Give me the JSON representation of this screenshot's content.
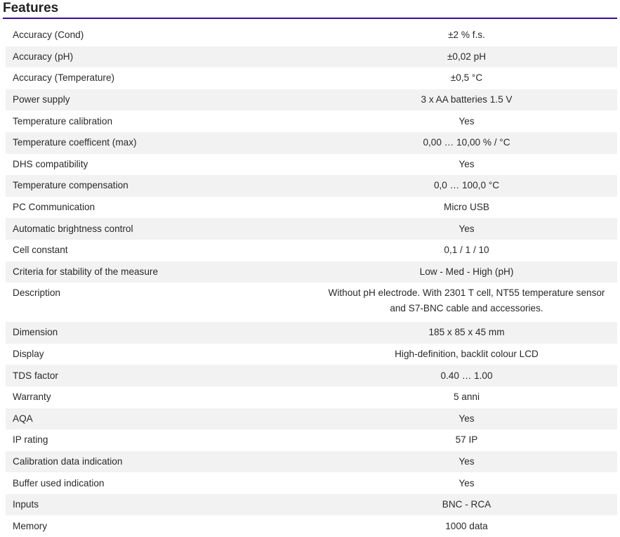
{
  "title": "Features",
  "accent_color": "#3a0a9c",
  "rows": [
    {
      "label": "Accuracy (Cond)",
      "value": "±2 % f.s."
    },
    {
      "label": "Accuracy (pH)",
      "value": "±0,02 pH"
    },
    {
      "label": "Accuracy (Temperature)",
      "value": "±0,5 °C"
    },
    {
      "label": "Power supply",
      "value": "3 x AA batteries 1.5 V"
    },
    {
      "label": "Temperature calibration",
      "value": "Yes"
    },
    {
      "label": "Temperature coefficent (max)",
      "value": "0,00 … 10,00 % / °C"
    },
    {
      "label": "DHS compatibility",
      "value": "Yes"
    },
    {
      "label": "Temperature compensation",
      "value": "0,0 … 100,0 °C"
    },
    {
      "label": "PC Communication",
      "value": "Micro USB"
    },
    {
      "label": "Automatic brightness control",
      "value": "Yes"
    },
    {
      "label": "Cell constant",
      "value": "0,1 / 1 / 10"
    },
    {
      "label": "Criteria for stability of the measure",
      "value": "Low - Med - High (pH)"
    },
    {
      "label": "Description",
      "value": "Without pH electrode. With 2301 T cell, NT55 temperature sensor and S7-BNC cable and accessories."
    },
    {
      "label": "Dimension",
      "value": "185 x 85 x 45 mm"
    },
    {
      "label": "Display",
      "value": "High-definition, backlit colour LCD"
    },
    {
      "label": "TDS factor",
      "value": "0.40 … 1.00"
    },
    {
      "label": "Warranty",
      "value": "5 anni"
    },
    {
      "label": "AQA",
      "value": "Yes"
    },
    {
      "label": "IP rating",
      "value": "57 IP"
    },
    {
      "label": "Calibration data indication",
      "value": "Yes"
    },
    {
      "label": "Buffer used indication",
      "value": "Yes"
    },
    {
      "label": "Inputs",
      "value": "BNC - RCA"
    },
    {
      "label": "Memory",
      "value": "1000 data"
    }
  ]
}
